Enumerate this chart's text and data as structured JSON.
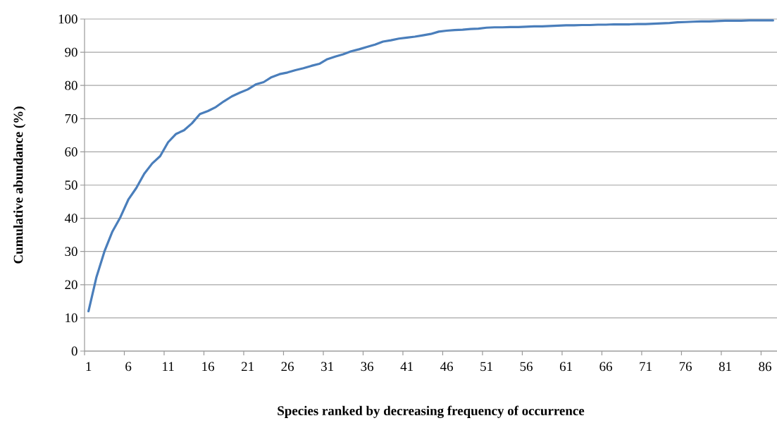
{
  "chart_data": {
    "type": "line",
    "xlabel": "Species ranked by decreasing frequency of occurrence",
    "ylabel": "Cumulative abundance (%)",
    "categories": [
      "1",
      null,
      null,
      null,
      null,
      "6",
      null,
      null,
      null,
      null,
      "11",
      null,
      null,
      null,
      null,
      "16",
      null,
      null,
      null,
      null,
      "21",
      null,
      null,
      null,
      null,
      "26",
      null,
      null,
      null,
      null,
      "31",
      null,
      null,
      null,
      null,
      "36",
      null,
      null,
      null,
      null,
      "41",
      null,
      null,
      null,
      null,
      "46",
      null,
      null,
      null,
      null,
      "51",
      null,
      null,
      null,
      null,
      "56",
      null,
      null,
      null,
      null,
      "61",
      null,
      null,
      null,
      null,
      "66",
      null,
      null,
      null,
      null,
      "71",
      null,
      null,
      null,
      null,
      "76",
      null,
      null,
      null,
      null,
      "81",
      null,
      null,
      null,
      null,
      "86",
      null
    ],
    "series": [
      {
        "color": "#4a7ebb",
        "values": [
          12.0,
          22.3,
          30.0,
          36.0,
          40.3,
          45.6,
          49.1,
          53.4,
          56.5,
          58.7,
          62.9,
          65.4,
          66.5,
          68.6,
          71.4,
          72.3,
          73.5,
          75.2,
          76.7,
          77.8,
          78.8,
          80.3,
          81.0,
          82.5,
          83.4,
          83.9,
          84.6,
          85.2,
          85.9,
          86.5,
          87.9,
          88.7,
          89.4,
          90.3,
          90.9,
          91.6,
          92.3,
          93.2,
          93.6,
          94.1,
          94.4,
          94.7,
          95.1,
          95.5,
          96.2,
          96.5,
          96.7,
          96.8,
          97.0,
          97.1,
          97.4,
          97.5,
          97.5,
          97.6,
          97.6,
          97.7,
          97.8,
          97.8,
          97.9,
          98.0,
          98.1,
          98.1,
          98.2,
          98.2,
          98.3,
          98.3,
          98.4,
          98.4,
          98.4,
          98.5,
          98.5,
          98.6,
          98.7,
          98.8,
          99.0,
          99.1,
          99.2,
          99.3,
          99.3,
          99.4,
          99.5,
          99.5,
          99.5,
          99.6,
          99.6,
          99.6,
          99.6
        ]
      }
    ],
    "ylim": [
      0,
      100
    ],
    "yticks": [
      0,
      10,
      20,
      30,
      40,
      50,
      60,
      70,
      80,
      90,
      100
    ],
    "grid": "y",
    "legend": false,
    "marker": "none",
    "line_style": "solid"
  }
}
